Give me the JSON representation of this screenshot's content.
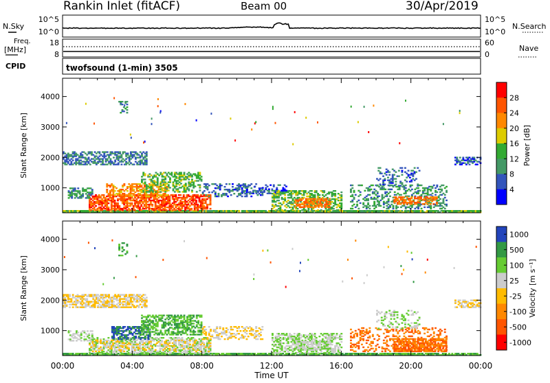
{
  "header": {
    "station": "Rankin Inlet (fitACF)",
    "beam": "Beam 00",
    "date": "30/Apr/2019"
  },
  "noise_panel": {
    "left_label": "N.Sky",
    "right_label": "N.Search",
    "top_tick": "10^5",
    "bottom_tick": "10^0"
  },
  "freq_panel": {
    "left_label_line1": "Freq.",
    "left_label_line2": "[MHz]",
    "left_top_tick": "18",
    "left_bottom_tick": "8",
    "right_label": "Nave",
    "right_top_tick": "60",
    "right_bottom_tick": "0"
  },
  "cpid_panel": {
    "label": "CPID",
    "program": "twofsound (1-min) 3505"
  },
  "x_axis": {
    "title": "Time UT",
    "ticks": [
      "00:00",
      "04:00",
      "08:00",
      "12:00",
      "16:00",
      "20:00",
      "00:00"
    ]
  },
  "colors": {
    "power": [
      "#0000ff",
      "#3355bb",
      "#449966",
      "#33aa33",
      "#ddcc00",
      "#ff8800",
      "#ff5500",
      "#ff0000"
    ],
    "velocity": [
      "#ff0000",
      "#ff5500",
      "#ff8800",
      "#ffbb00",
      "#cccccc",
      "#66cc33",
      "#339944",
      "#2244bb"
    ]
  },
  "chart_data": [
    {
      "type": "heatmap",
      "name": "power",
      "ylabel": "Slant Range [km]",
      "y_ticks": [
        "1000",
        "2000",
        "3000",
        "4000"
      ],
      "ylim": [
        180,
        4600
      ],
      "xlim_hours": [
        0,
        24
      ],
      "colorbar_title": "Power [dB]",
      "colorbar_ticks": [
        "4",
        "8",
        "12",
        "16",
        "20",
        "24",
        "28"
      ],
      "scale": [
        0,
        32
      ],
      "blobs": [
        {
          "t": [
            0.0,
            24.0
          ],
          "r": [
            180,
            260
          ],
          "v": 14,
          "d": 0.95
        },
        {
          "t": [
            1.5,
            8.5
          ],
          "r": [
            250,
            750
          ],
          "v": 26,
          "d": 0.7
        },
        {
          "t": [
            2.5,
            6.0
          ],
          "r": [
            700,
            1150
          ],
          "v": 22,
          "d": 0.55
        },
        {
          "t": [
            4.5,
            8.0
          ],
          "r": [
            850,
            1500
          ],
          "v": 14,
          "d": 0.45
        },
        {
          "t": [
            0.3,
            1.7
          ],
          "r": [
            650,
            1000
          ],
          "v": 10,
          "d": 0.5
        },
        {
          "t": [
            0.0,
            4.8
          ],
          "r": [
            1750,
            2200
          ],
          "v": 8,
          "d": 0.55
        },
        {
          "t": [
            3.2,
            3.7
          ],
          "r": [
            3450,
            3900
          ],
          "v": 10,
          "d": 0.35
        },
        {
          "t": [
            8.0,
            11.5
          ],
          "r": [
            700,
            1150
          ],
          "v": 7,
          "d": 0.3
        },
        {
          "t": [
            10.0,
            12.8
          ],
          "r": [
            800,
            1100
          ],
          "v": 6,
          "d": 0.35
        },
        {
          "t": [
            12.0,
            16.0
          ],
          "r": [
            250,
            900
          ],
          "v": 14,
          "d": 0.45
        },
        {
          "t": [
            13.3,
            15.3
          ],
          "r": [
            350,
            650
          ],
          "v": 24,
          "d": 0.6
        },
        {
          "t": [
            16.5,
            22.0
          ],
          "r": [
            300,
            1100
          ],
          "v": 10,
          "d": 0.35
        },
        {
          "t": [
            19.0,
            21.5
          ],
          "r": [
            450,
            700
          ],
          "v": 24,
          "d": 0.6
        },
        {
          "t": [
            18.0,
            20.5
          ],
          "r": [
            1050,
            1650
          ],
          "v": 7,
          "d": 0.25
        },
        {
          "t": [
            22.5,
            24.0
          ],
          "r": [
            1750,
            2000
          ],
          "v": 6,
          "d": 0.5
        }
      ]
    },
    {
      "type": "heatmap",
      "name": "velocity",
      "ylabel": "Slant Range [km]",
      "y_ticks": [
        "1000",
        "2000",
        "3000",
        "4000"
      ],
      "ylim": [
        180,
        4600
      ],
      "xlim_hours": [
        0,
        24
      ],
      "colorbar_title": "Velocity [m s⁻¹]",
      "colorbar_ticks": [
        "1000",
        "500",
        "100",
        "25",
        "-25",
        "-100",
        "-500",
        "-1000"
      ],
      "scale": [
        0,
        8
      ],
      "blobs": [
        {
          "t": [
            0.0,
            24.0
          ],
          "r": [
            180,
            260
          ],
          "v": 6,
          "d": 0.9
        },
        {
          "t": [
            1.5,
            8.5
          ],
          "r": [
            250,
            750
          ],
          "v": 5,
          "d": 0.5
        },
        {
          "t": [
            1.5,
            8.5
          ],
          "r": [
            300,
            700
          ],
          "v": 4,
          "d": 0.35
        },
        {
          "t": [
            2.8,
            5.0
          ],
          "r": [
            700,
            1150
          ],
          "v": 7,
          "d": 0.6
        },
        {
          "t": [
            4.5,
            8.0
          ],
          "r": [
            850,
            1500
          ],
          "v": 6,
          "d": 0.55
        },
        {
          "t": [
            0.3,
            1.7
          ],
          "r": [
            650,
            1000
          ],
          "v": 5,
          "d": 0.45
        },
        {
          "t": [
            0.0,
            4.8
          ],
          "r": [
            1750,
            2200
          ],
          "v": 4,
          "d": 0.65
        },
        {
          "t": [
            3.2,
            3.7
          ],
          "r": [
            3450,
            3900
          ],
          "v": 6,
          "d": 0.3
        },
        {
          "t": [
            8.0,
            11.5
          ],
          "r": [
            700,
            1150
          ],
          "v": 4,
          "d": 0.3
        },
        {
          "t": [
            12.0,
            16.0
          ],
          "r": [
            250,
            900
          ],
          "v": 5,
          "d": 0.5
        },
        {
          "t": [
            13.3,
            15.3
          ],
          "r": [
            350,
            650
          ],
          "v": 5,
          "d": 0.55
        },
        {
          "t": [
            16.5,
            22.0
          ],
          "r": [
            300,
            1100
          ],
          "v": 2,
          "d": 0.3
        },
        {
          "t": [
            19.0,
            22.0
          ],
          "r": [
            300,
            750
          ],
          "v": 2,
          "d": 0.7
        },
        {
          "t": [
            18.0,
            20.5
          ],
          "r": [
            1050,
            1650
          ],
          "v": 5,
          "d": 0.25
        },
        {
          "t": [
            22.5,
            24.0
          ],
          "r": [
            1750,
            2000
          ],
          "v": 4,
          "d": 0.55
        }
      ]
    }
  ]
}
